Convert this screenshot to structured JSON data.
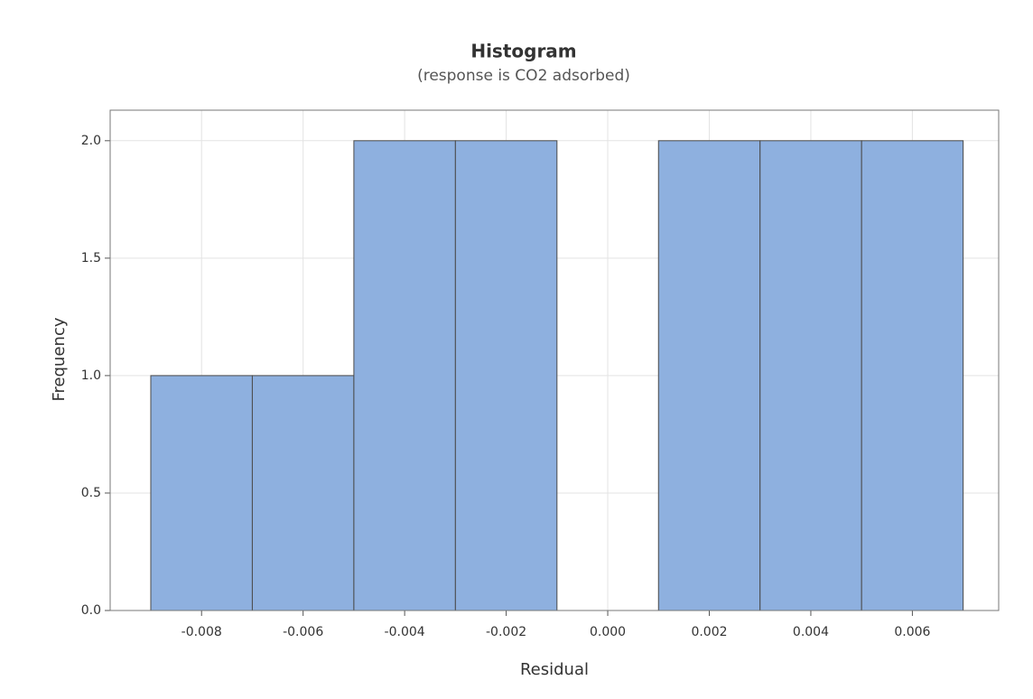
{
  "chart_data": {
    "type": "histogram",
    "title": "Histogram",
    "subtitle": "(response is CO2 adsorbed)",
    "x_label": "Residual",
    "y_label": "Frequency",
    "bins": [
      -0.009,
      -0.007,
      -0.005,
      -0.003,
      -0.001,
      0.001,
      0.003,
      0.005,
      0.007
    ],
    "values": [
      1,
      1,
      2,
      2,
      0,
      2,
      2,
      2
    ],
    "color": "#8eb0df",
    "xlim": [
      -0.0098,
      0.0077
    ],
    "xticks": [
      -0.008,
      -0.006,
      -0.004,
      -0.002,
      {
        "value": 0,
        "label": "0.000"
      },
      0.002,
      0.004,
      0.006
    ],
    "ylim": [
      0,
      2.13
    ],
    "yticks": [
      {
        "value": 0,
        "label": "0.0"
      },
      0.5,
      {
        "value": 1,
        "label": "1.0"
      },
      1.5,
      {
        "value": 2,
        "label": "2.0"
      }
    ],
    "grid": true
  }
}
